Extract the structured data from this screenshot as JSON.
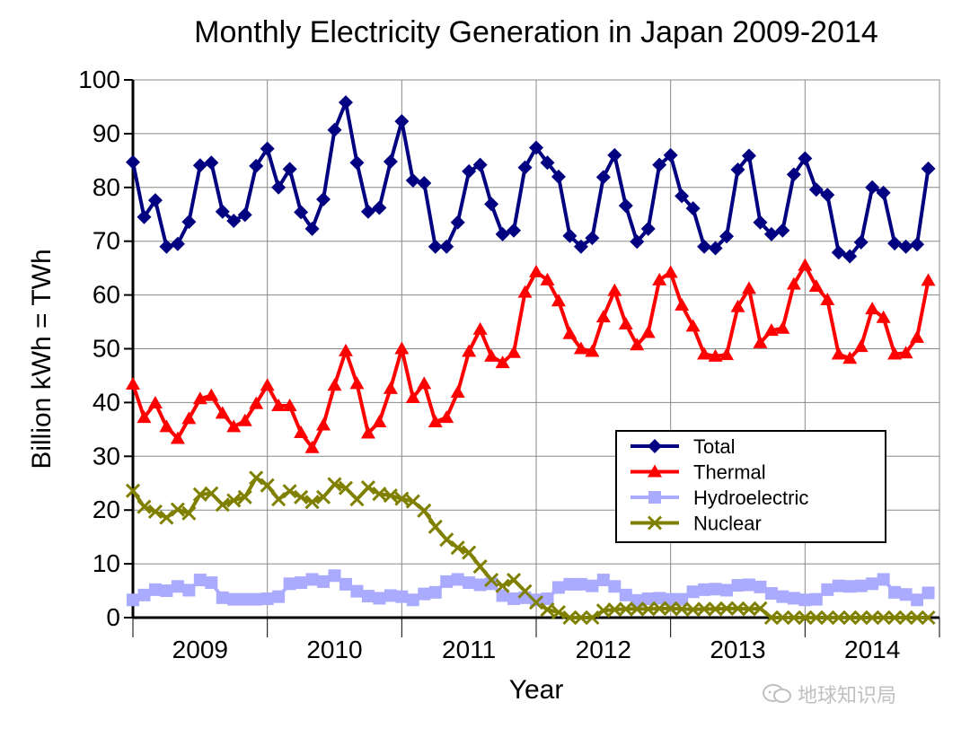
{
  "chart_data": {
    "type": "line",
    "title": "Monthly Electricity Generation in Japan 2009-2014",
    "xlabel": "Year",
    "ylabel": "Billion kWh = TWh",
    "ylim": [
      0,
      100
    ],
    "yticks": [
      0,
      10,
      20,
      30,
      40,
      50,
      60,
      70,
      80,
      90,
      100
    ],
    "year_labels": [
      "2009",
      "2010",
      "2011",
      "2012",
      "2013",
      "2014"
    ],
    "x_unit": "month index from Jan 2009 (0-71)",
    "grid": true,
    "legend_position": "center-right",
    "series": [
      {
        "name": "Total",
        "color": "#000080",
        "marker": "diamond",
        "values": [
          84.7,
          74.5,
          77.6,
          69.0,
          69.5,
          73.6,
          84.1,
          84.6,
          75.5,
          73.8,
          74.9,
          84.0,
          87.2,
          80.0,
          83.4,
          75.4,
          72.3,
          77.8,
          90.7,
          95.8,
          84.6,
          75.5,
          76.2,
          84.8,
          92.3,
          81.3,
          80.8,
          69.0,
          69.0,
          73.5,
          83.0,
          84.2,
          76.9,
          71.3,
          72.0,
          83.7,
          87.4,
          84.6,
          82.0,
          71.0,
          69.0,
          70.6,
          81.9,
          86.0,
          76.6,
          69.9,
          72.3,
          84.2,
          86.0,
          78.4,
          76.1,
          69.0,
          68.7,
          70.9,
          83.3,
          85.9,
          73.5,
          71.3,
          72.0,
          82.4,
          85.4,
          79.6,
          78.6,
          67.9,
          67.2,
          69.8,
          80.0,
          79.0,
          69.6,
          69.0,
          69.4,
          83.5
        ]
      },
      {
        "name": "Thermal",
        "color": "#ff0000",
        "marker": "triangle",
        "values": [
          43.4,
          37.2,
          39.9,
          35.5,
          33.3,
          37.0,
          40.7,
          41.3,
          38.0,
          35.5,
          36.6,
          39.8,
          43.2,
          39.4,
          39.4,
          34.4,
          31.6,
          35.8,
          43.2,
          49.6,
          43.5,
          34.3,
          36.4,
          42.6,
          50.0,
          40.9,
          43.5,
          36.4,
          37.2,
          41.9,
          49.5,
          53.6,
          48.6,
          47.4,
          49.3,
          60.5,
          64.3,
          62.8,
          58.9,
          52.8,
          50.0,
          49.5,
          55.9,
          60.8,
          54.6,
          50.7,
          53.0,
          62.8,
          64.2,
          58.1,
          54.2,
          49.0,
          48.6,
          48.9,
          57.8,
          61.2,
          51.1,
          53.4,
          53.8,
          62.0,
          65.5,
          61.6,
          59.1,
          49.0,
          48.2,
          50.4,
          57.4,
          55.8,
          49.0,
          49.2,
          52.1,
          62.7
        ]
      },
      {
        "name": "Hydroelectric",
        "color": "#aaaaff",
        "marker": "square",
        "values": [
          3.3,
          4.2,
          5.2,
          5.0,
          5.8,
          5.1,
          7.0,
          6.5,
          3.7,
          3.4,
          3.4,
          3.4,
          3.5,
          3.9,
          6.3,
          6.5,
          7.1,
          6.7,
          7.8,
          6.2,
          4.9,
          4.0,
          3.6,
          4.1,
          3.9,
          3.3,
          4.4,
          4.7,
          6.7,
          7.1,
          6.5,
          6.1,
          6.3,
          4.1,
          3.5,
          3.7,
          3.3,
          3.5,
          5.6,
          6.2,
          6.2,
          5.9,
          7.0,
          5.8,
          4.2,
          3.2,
          3.5,
          3.6,
          3.4,
          3.4,
          4.8,
          5.2,
          5.3,
          5.1,
          6.0,
          6.1,
          5.7,
          4.5,
          3.9,
          3.6,
          3.3,
          3.4,
          5.2,
          5.9,
          5.8,
          5.9,
          6.3,
          7.1,
          4.7,
          4.3,
          3.3,
          4.6
        ]
      },
      {
        "name": "Nuclear",
        "color": "#808000",
        "marker": "x",
        "values": [
          23.6,
          20.6,
          19.7,
          18.6,
          20.1,
          19.4,
          22.9,
          23.1,
          21.0,
          21.8,
          22.4,
          26.0,
          24.6,
          22.0,
          23.5,
          22.4,
          21.5,
          22.4,
          24.8,
          24.1,
          22.0,
          24.2,
          23.0,
          22.7,
          22.1,
          21.6,
          19.9,
          16.9,
          14.5,
          13.0,
          12.1,
          9.5,
          7.0,
          5.9,
          7.0,
          4.9,
          2.8,
          1.5,
          1.0,
          0.0,
          0.0,
          0.0,
          1.3,
          1.5,
          1.6,
          1.6,
          1.6,
          1.7,
          1.7,
          1.6,
          1.5,
          1.6,
          1.6,
          1.7,
          1.7,
          1.6,
          1.7,
          0.0,
          0.0,
          0.0,
          0.0,
          0.0,
          0.0,
          0.0,
          0.0,
          0.0,
          0.0,
          0.0,
          0.0,
          0.0,
          0.0,
          0.0
        ]
      }
    ]
  },
  "watermark": {
    "text": "地球知识局",
    "icon": "chat-bubbles-icon"
  }
}
